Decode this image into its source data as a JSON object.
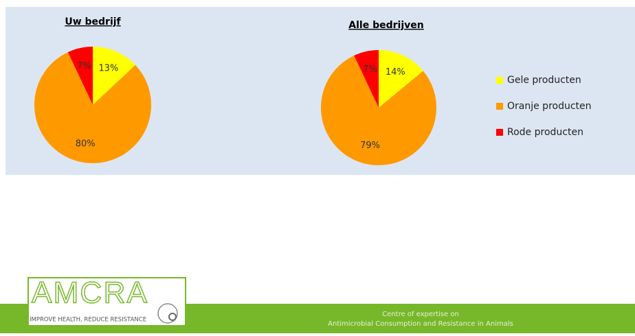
{
  "chart_data": [
    {
      "type": "pie",
      "title": "Uw bedrijf",
      "values": [
        13,
        80,
        7
      ],
      "value_labels": [
        "13%",
        "80%",
        "7%"
      ]
    },
    {
      "type": "pie",
      "title": "Alle bedrijven",
      "values": [
        14,
        79,
        7
      ],
      "value_labels": [
        "14%",
        "79%",
        "7%"
      ]
    }
  ],
  "legend": {
    "labels": [
      "Gele producten",
      "Oranje producten",
      "Rode producten"
    ],
    "colors": [
      "#ffff00",
      "#ff9900",
      "#ff0000"
    ]
  },
  "footer": {
    "logo": "AMCRA",
    "slogan": "IMPROVE HEALTH, REDUCE RESISTANCE",
    "line1": "Centre of expertise on",
    "line2": "Antimicrobial Consumption and Resistance in Animals"
  }
}
